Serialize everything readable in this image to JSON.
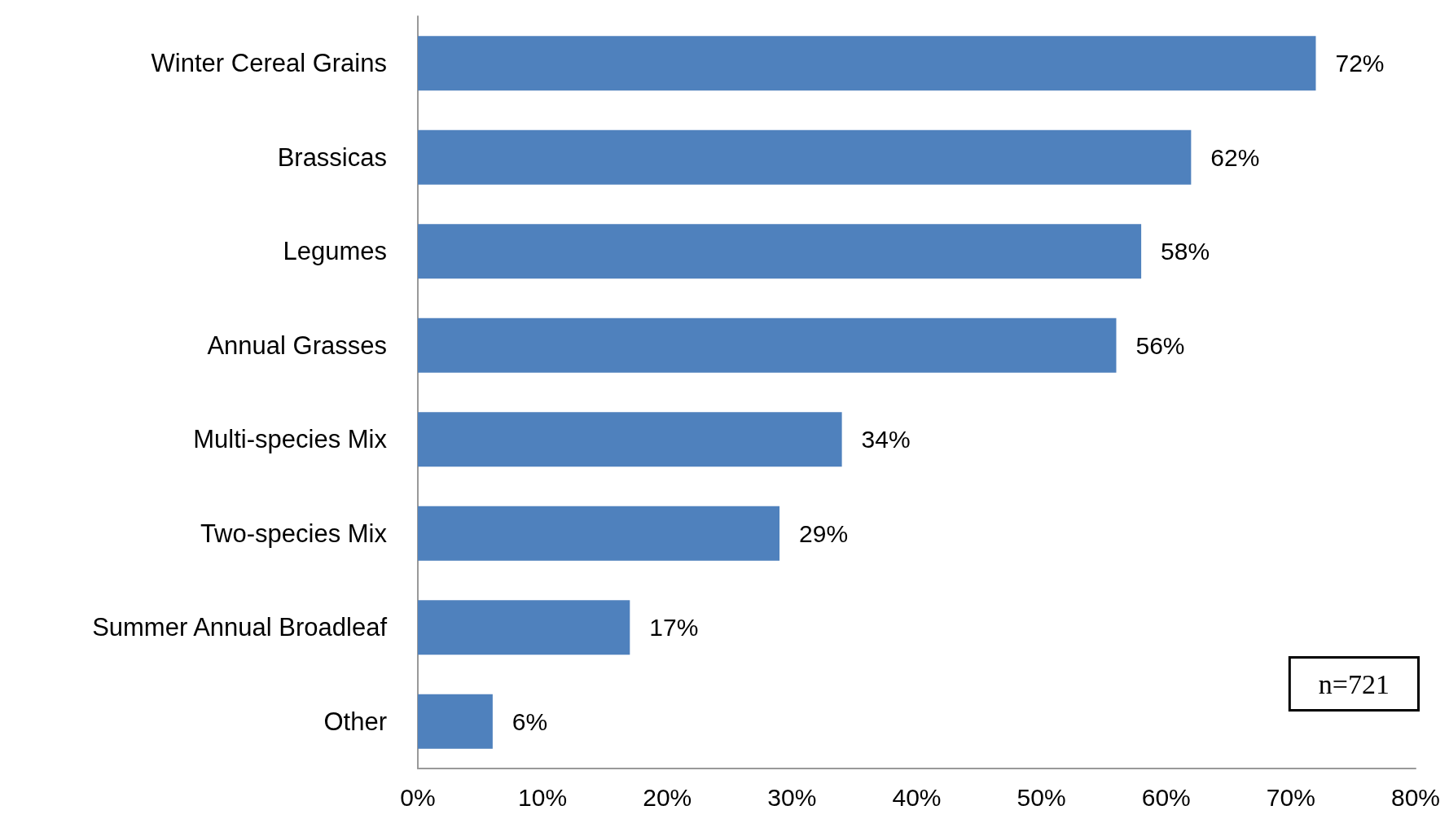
{
  "chart_data": {
    "type": "bar",
    "orientation": "horizontal",
    "categories": [
      "Winter Cereal Grains",
      "Brassicas",
      "Legumes",
      "Annual Grasses",
      "Multi-species Mix",
      "Two-species Mix",
      "Summer Annual Broadleaf",
      "Other"
    ],
    "values": [
      72,
      62,
      58,
      56,
      34,
      29,
      17,
      6
    ],
    "value_labels": [
      "72%",
      "62%",
      "58%",
      "56%",
      "34%",
      "29%",
      "17%",
      "6%"
    ],
    "color": "#4f81bd",
    "xlim": [
      0,
      80
    ],
    "xticks": [
      {
        "value": 0,
        "label": "0%"
      },
      {
        "value": 10,
        "label": "10%"
      },
      {
        "value": 20,
        "label": "20%"
      },
      {
        "value": 30,
        "label": "30%"
      },
      {
        "value": 40,
        "label": "40%"
      },
      {
        "value": 50,
        "label": "50%"
      },
      {
        "value": 60,
        "label": "60%"
      },
      {
        "value": 70,
        "label": "70%"
      },
      {
        "value": 80,
        "label": "80%"
      }
    ],
    "grid": false,
    "annotations": [
      "n=721"
    ]
  }
}
